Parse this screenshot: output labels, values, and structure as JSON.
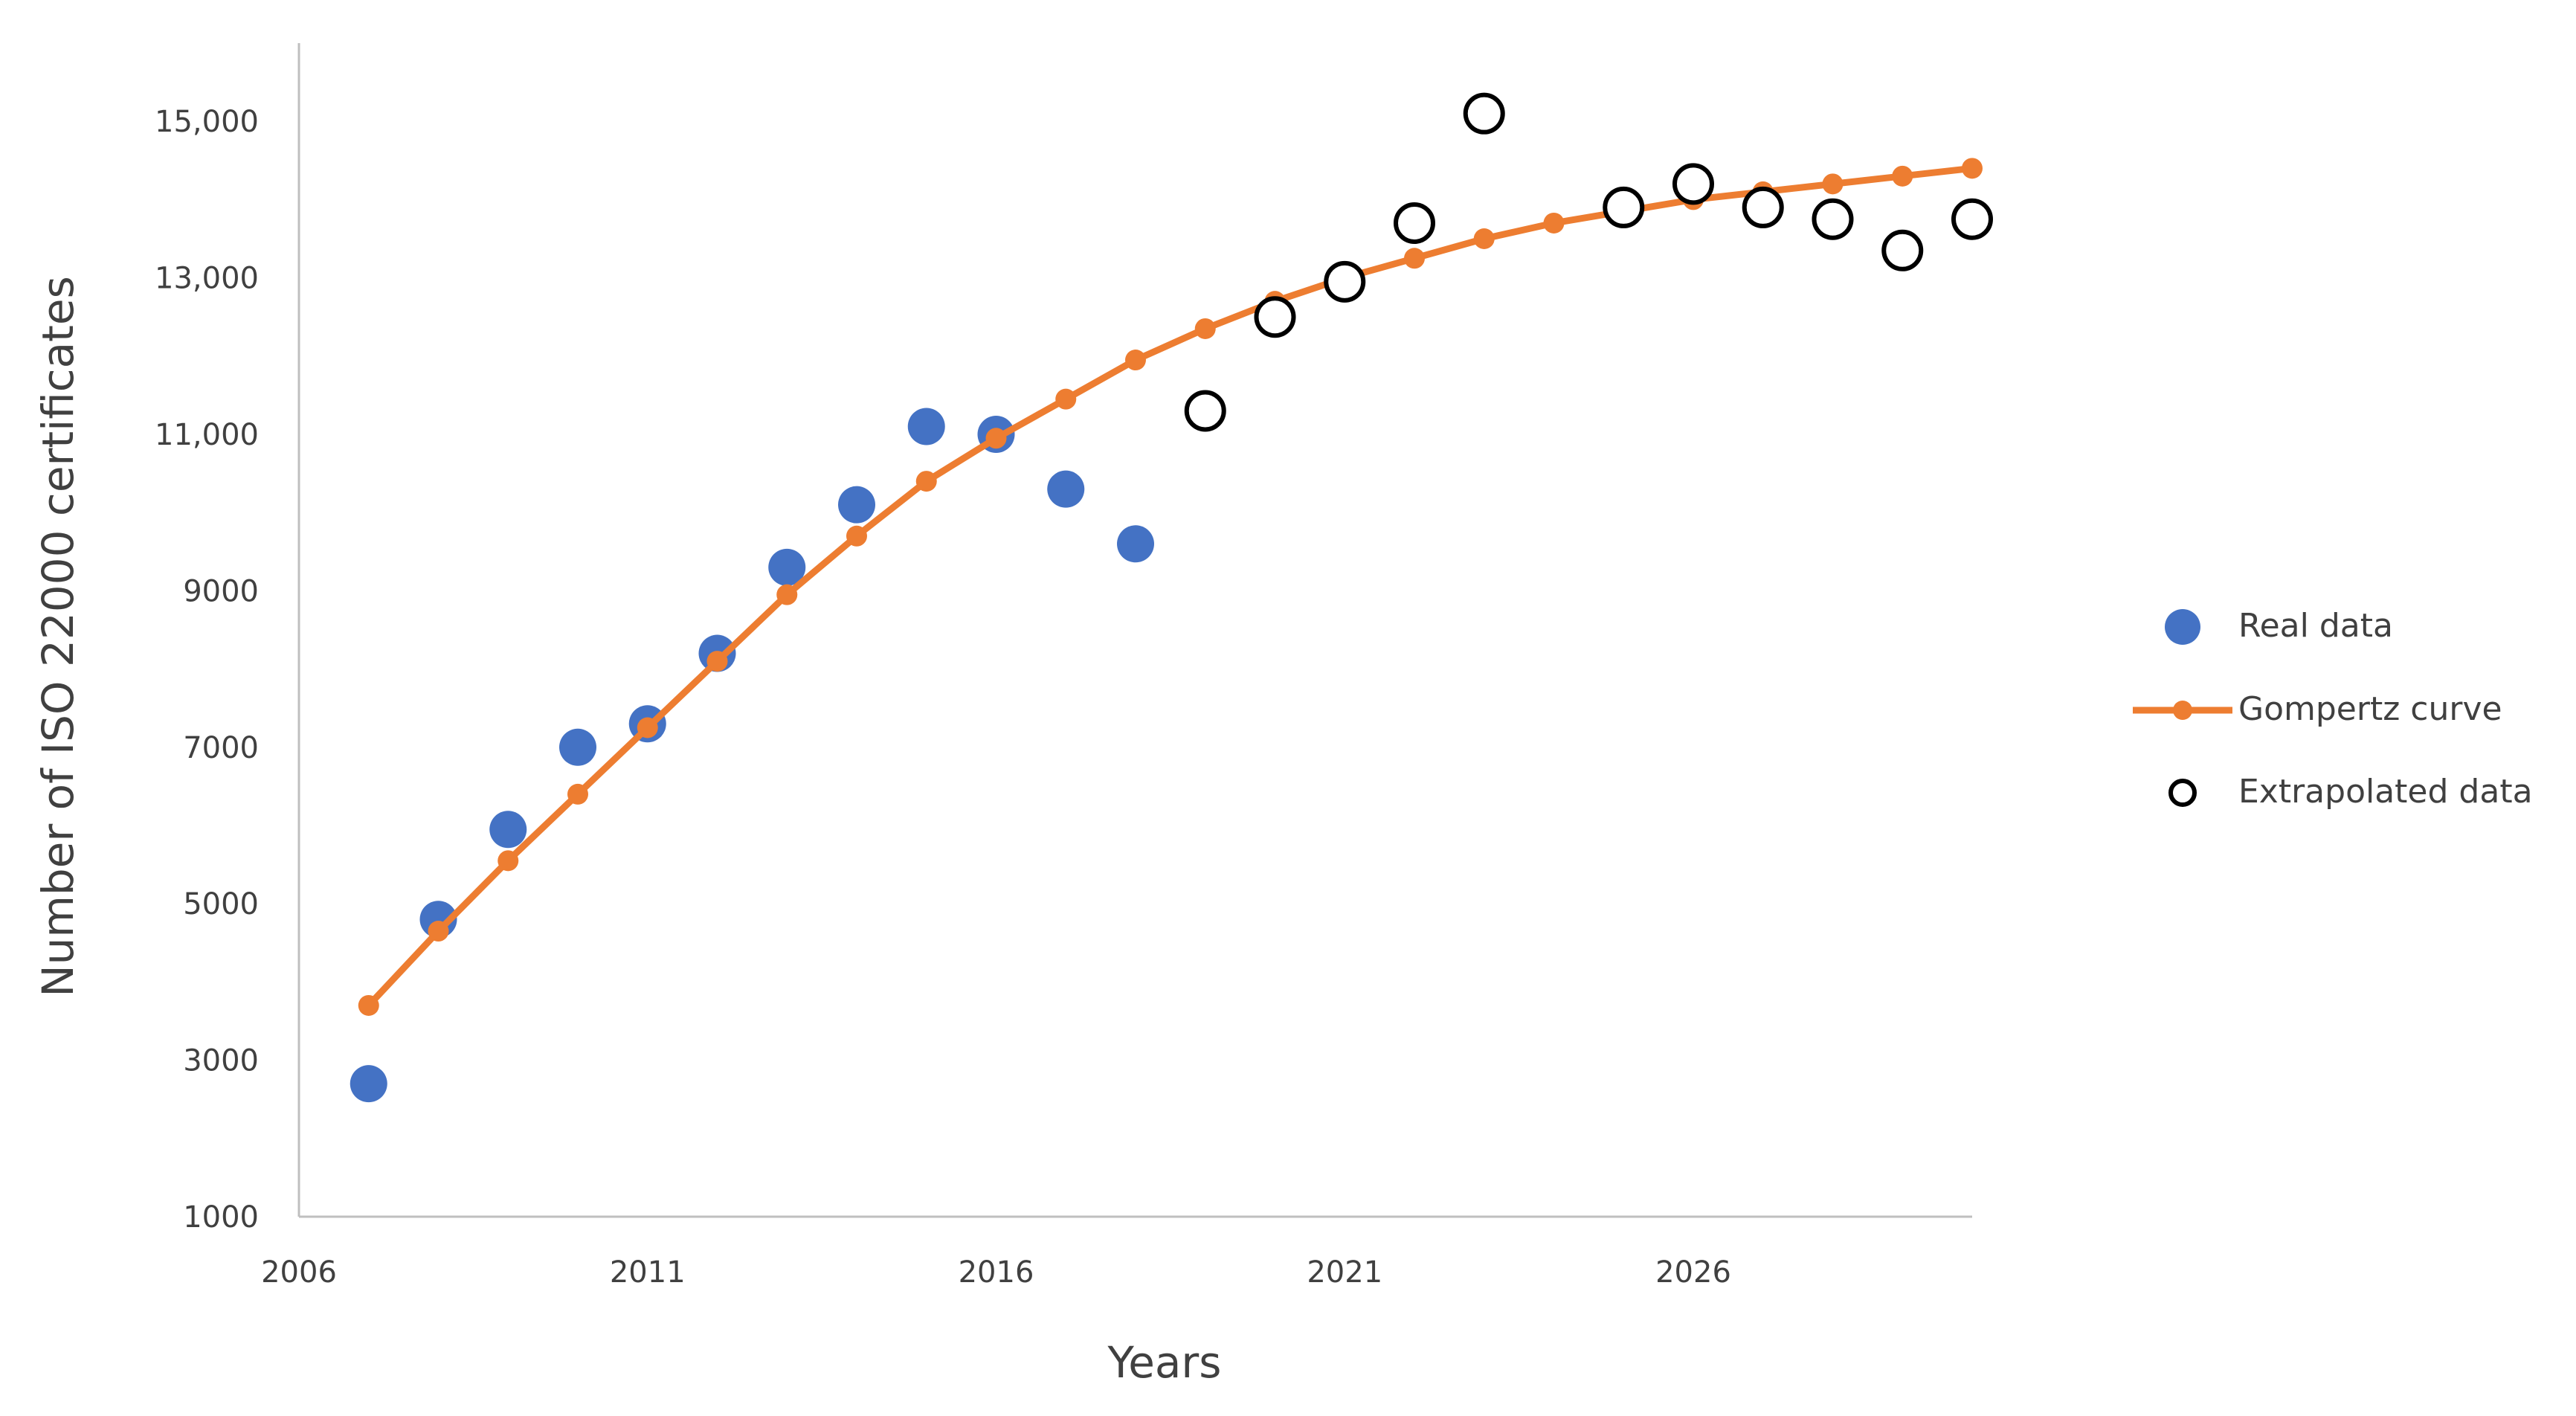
{
  "chart_data": {
    "type": "scatter",
    "xlabel": "Years",
    "ylabel": "Number of ISO 22000 certificates",
    "xlim": [
      2006,
      2030
    ],
    "ylim": [
      1000,
      16000
    ],
    "x_ticks": [
      {
        "value": 2006,
        "label": "2006"
      },
      {
        "value": 2011,
        "label": "2011"
      },
      {
        "value": 2016,
        "label": "2016"
      },
      {
        "value": 2021,
        "label": "2021"
      },
      {
        "value": 2026,
        "label": "2026"
      }
    ],
    "y_ticks": [
      {
        "value": 1000,
        "label": "1000"
      },
      {
        "value": 3000,
        "label": "3000"
      },
      {
        "value": 5000,
        "label": "5000"
      },
      {
        "value": 7000,
        "label": "7000"
      },
      {
        "value": 9000,
        "label": "9000"
      },
      {
        "value": 11000,
        "label": "11,000"
      },
      {
        "value": 13000,
        "label": "13,000"
      },
      {
        "value": 15000,
        "label": "15,000"
      }
    ],
    "grid": false,
    "legend_position": "right",
    "series": [
      {
        "name": "Real data",
        "kind": "scatter-filled",
        "color": "#4472c4",
        "x": [
          2007,
          2008,
          2009,
          2010,
          2011,
          2012,
          2013,
          2014,
          2015,
          2016,
          2017,
          2018
        ],
        "y": [
          2700,
          4800,
          5950,
          7000,
          7300,
          8200,
          9300,
          10100,
          11100,
          11000,
          10300,
          9600
        ]
      },
      {
        "name": "Gompertz curve",
        "kind": "line-markers",
        "color": "#ed7d31",
        "x": [
          2007,
          2008,
          2009,
          2010,
          2011,
          2012,
          2013,
          2014,
          2015,
          2016,
          2017,
          2018,
          2019,
          2020,
          2021,
          2022,
          2023,
          2024,
          2025,
          2026,
          2027,
          2028,
          2029,
          2030
        ],
        "y": [
          3700,
          4650,
          5550,
          6400,
          7250,
          8100,
          8950,
          9700,
          10400,
          10950,
          11450,
          11950,
          12350,
          12700,
          13000,
          13250,
          13500,
          13700,
          13850,
          14000,
          14100,
          14200,
          14300,
          14400
        ]
      },
      {
        "name": "Extrapolated data",
        "kind": "scatter-open",
        "color": "#000000",
        "x": [
          2019,
          2020,
          2021,
          2022,
          2023,
          2025,
          2026,
          2027,
          2028,
          2029,
          2030
        ],
        "y": [
          11300,
          12500,
          12950,
          13700,
          15100,
          13900,
          14200,
          13900,
          13750,
          13350,
          13750
        ]
      }
    ]
  }
}
